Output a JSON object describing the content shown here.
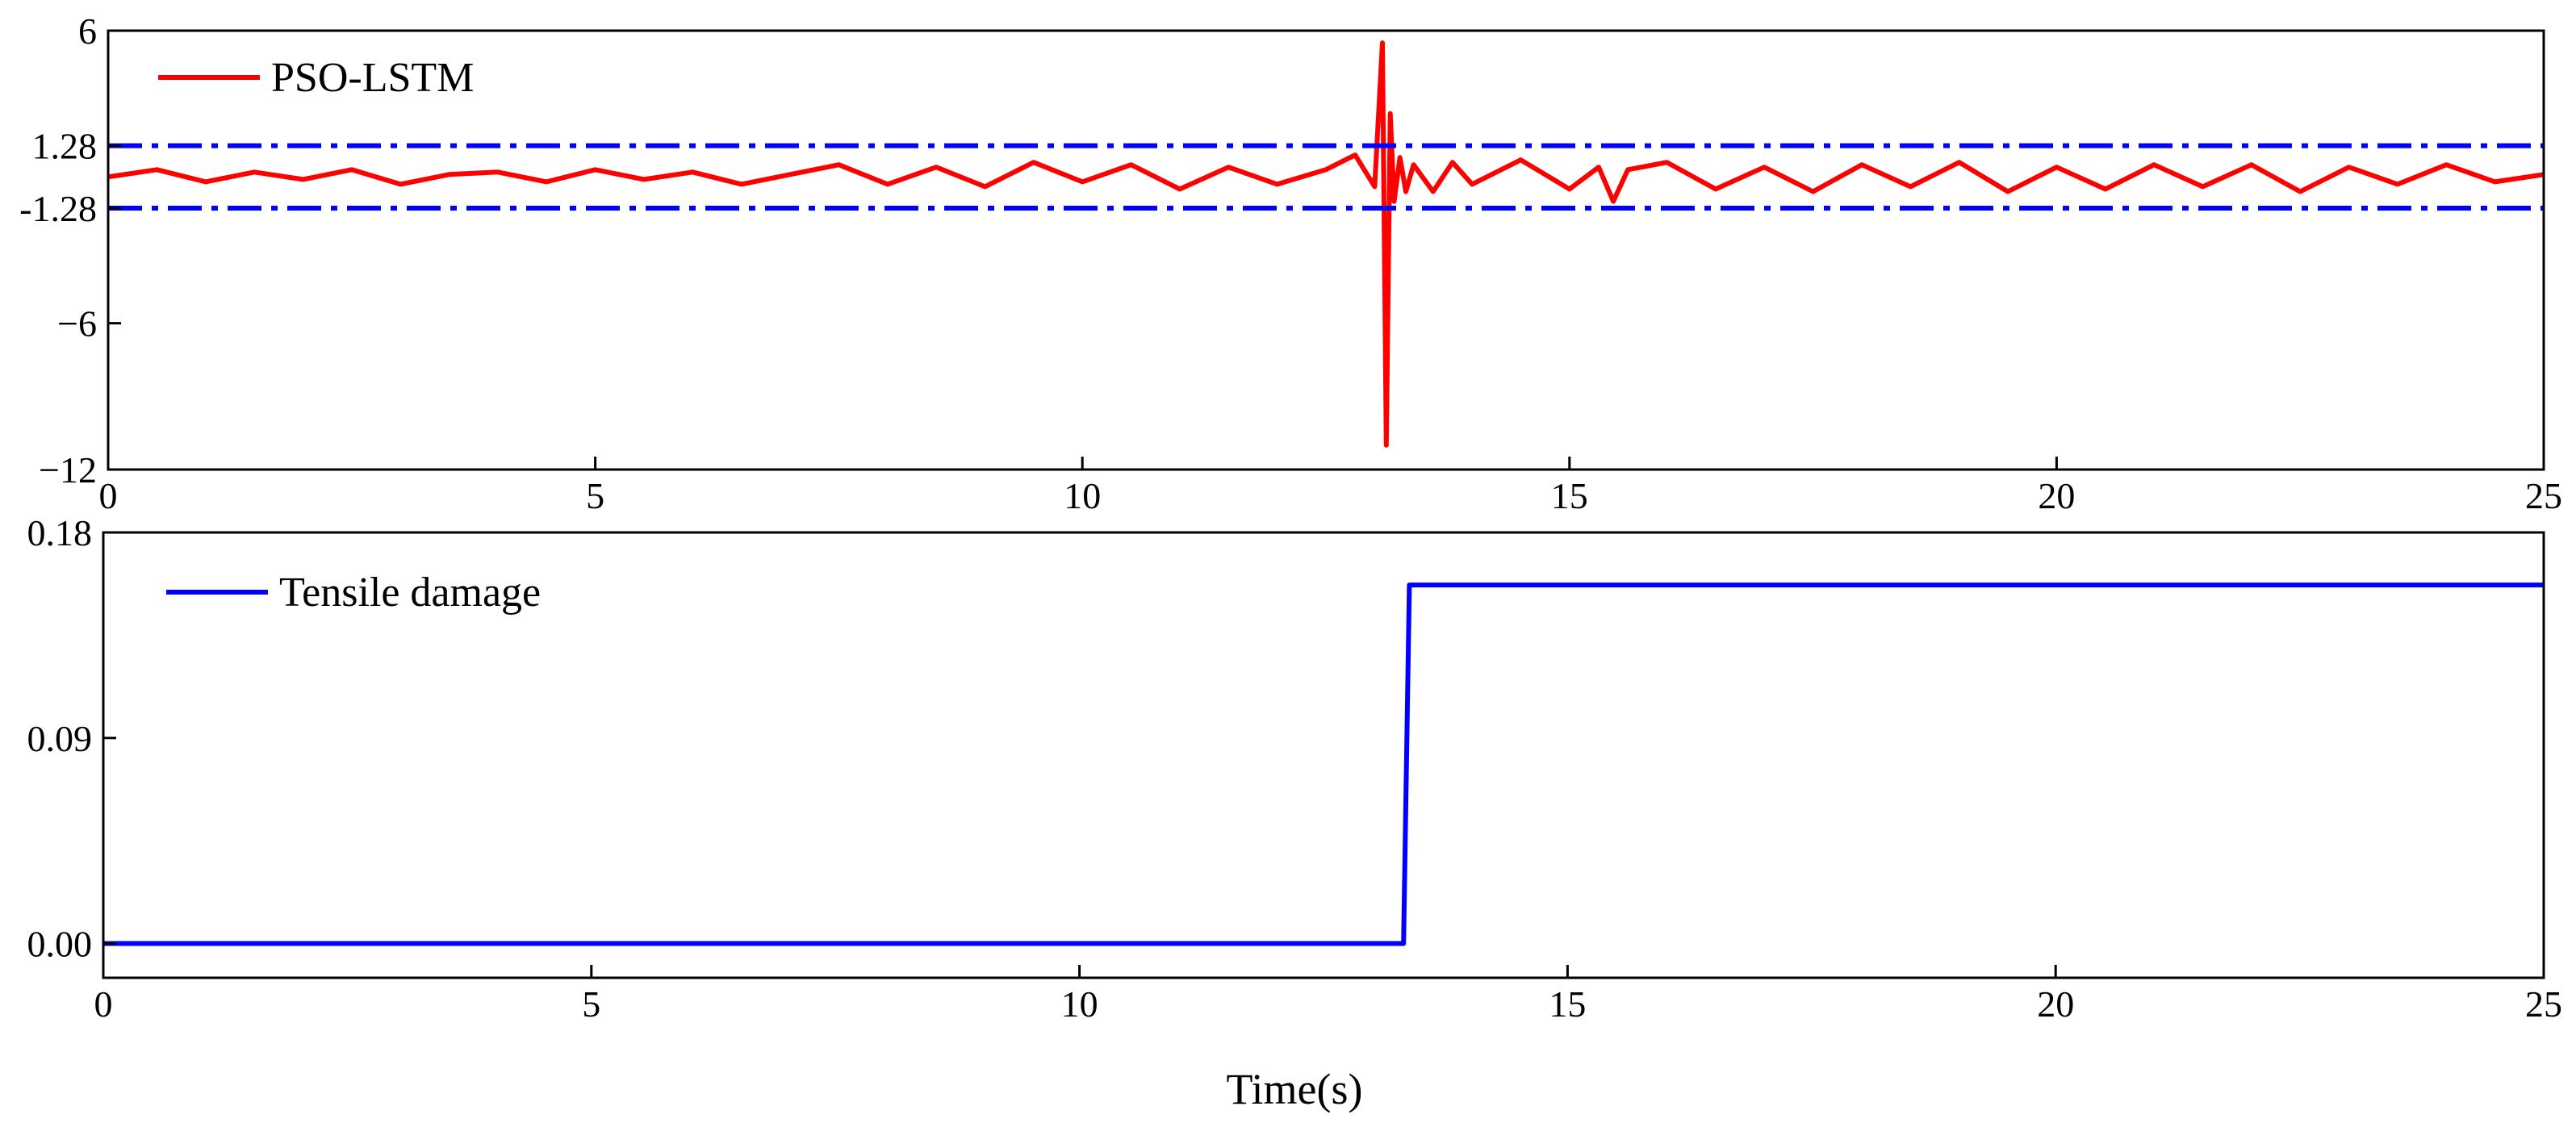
{
  "chart_data": [
    {
      "type": "line",
      "title": "",
      "xlabel": "",
      "ylabel": "",
      "xlim": [
        0,
        25
      ],
      "ylim": [
        -12,
        6
      ],
      "xticks": [
        0,
        5,
        10,
        15,
        20,
        25
      ],
      "yticks": [
        6,
        1.28,
        -1.28,
        -6,
        -12
      ],
      "ytick_labels": [
        "6",
        "1.28",
        "-1.28",
        "−6",
        "−12"
      ],
      "grid": false,
      "legend_position": "top-left",
      "series": [
        {
          "name": "PSO-LSTM",
          "color": "#ff0000",
          "style": "solid",
          "x": [
            0,
            0.5,
            1,
            1.5,
            2,
            2.5,
            3,
            3.5,
            4,
            4.5,
            5,
            5.5,
            6,
            6.5,
            7,
            7.5,
            8,
            8.5,
            9,
            9.5,
            10,
            10.5,
            11,
            11.5,
            12,
            12.5,
            12.8,
            13.0,
            13.08,
            13.12,
            13.16,
            13.2,
            13.26,
            13.32,
            13.4,
            13.6,
            13.8,
            14,
            14.5,
            15,
            15.3,
            15.45,
            15.6,
            16,
            16.5,
            17,
            17.5,
            18,
            18.5,
            19,
            19.5,
            20,
            20.5,
            21,
            21.5,
            22,
            22.5,
            23,
            23.5,
            24,
            24.5,
            25
          ],
          "y": [
            0.0,
            0.3,
            -0.2,
            0.2,
            -0.1,
            0.3,
            -0.3,
            0.1,
            0.2,
            -0.2,
            0.3,
            -0.1,
            0.2,
            -0.3,
            0.1,
            0.5,
            -0.3,
            0.4,
            -0.4,
            0.6,
            -0.2,
            0.5,
            -0.5,
            0.4,
            -0.3,
            0.3,
            0.9,
            -0.4,
            5.5,
            -11.0,
            2.6,
            -1.0,
            0.8,
            -0.6,
            0.5,
            -0.6,
            0.6,
            -0.3,
            0.7,
            -0.5,
            0.4,
            -1.0,
            0.3,
            0.6,
            -0.5,
            0.4,
            -0.6,
            0.5,
            -0.4,
            0.6,
            -0.6,
            0.4,
            -0.5,
            0.5,
            -0.4,
            0.5,
            -0.6,
            0.4,
            -0.3,
            0.5,
            -0.2,
            0.1
          ]
        },
        {
          "name": "",
          "color": "#0000ff",
          "style": "dash-dot",
          "x": [
            0,
            25
          ],
          "y": [
            1.28,
            1.28
          ]
        },
        {
          "name": "",
          "color": "#0000ff",
          "style": "dash-dot",
          "x": [
            0,
            25
          ],
          "y": [
            -1.28,
            -1.28
          ]
        }
      ]
    },
    {
      "type": "line",
      "title": "",
      "xlabel": "Time(s)",
      "ylabel": "",
      "xlim": [
        0,
        25
      ],
      "ylim": [
        -0.015,
        0.18
      ],
      "xticks": [
        0,
        5,
        10,
        15,
        20,
        25
      ],
      "yticks": [
        0.18,
        0.09,
        0.0
      ],
      "ytick_labels": [
        "0.18",
        "0.09",
        "0.00"
      ],
      "grid": false,
      "legend_position": "top-left",
      "series": [
        {
          "name": "Tensile damage",
          "color": "#0000ff",
          "style": "solid",
          "x": [
            0,
            13.32,
            13.38,
            25
          ],
          "y": [
            0.0,
            0.0,
            0.157,
            0.157
          ]
        }
      ]
    }
  ]
}
